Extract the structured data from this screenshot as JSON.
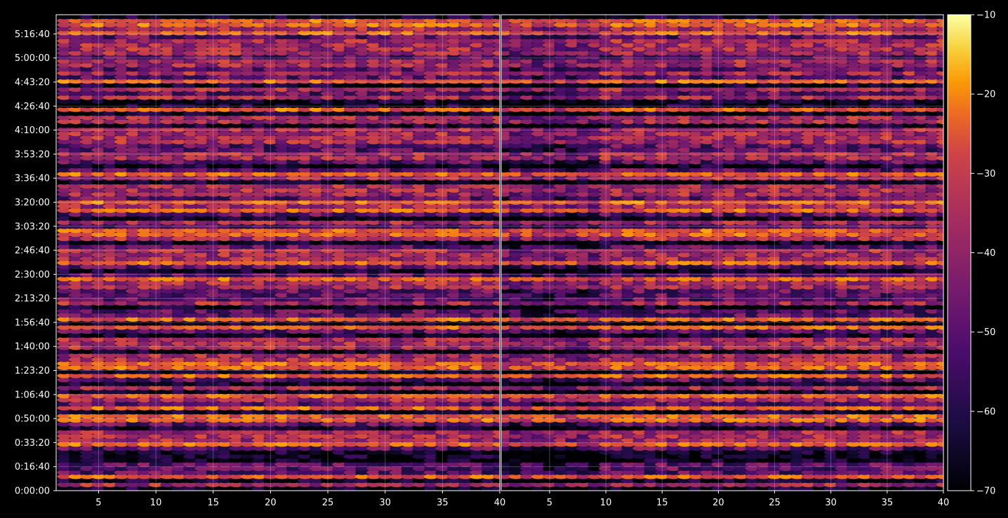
{
  "chart_data": {
    "type": "heatmap",
    "title": "",
    "xlabel": "",
    "ylabel": "",
    "panels": [
      {
        "name": "",
        "xlim": [
          1.3,
          40
        ]
      },
      {
        "name": "",
        "xlim": [
          0.7,
          40
        ]
      }
    ],
    "x_ticks": [
      5,
      10,
      15,
      20,
      25,
      30,
      35,
      40
    ],
    "x_tick_labels": [
      "5",
      "10",
      "15",
      "20",
      "25",
      "30",
      "35",
      "40"
    ],
    "ylim_seconds": [
      0,
      19800
    ],
    "y_ticks_seconds": [
      0,
      1000,
      2000,
      3000,
      4000,
      5000,
      6000,
      7000,
      8000,
      9000,
      10000,
      11000,
      12000,
      13000,
      14000,
      15000,
      16000,
      17000,
      18000,
      19000
    ],
    "y_tick_labels": [
      "0:00:00",
      "0:16:40",
      "0:33:20",
      "0:50:00",
      "1:06:40",
      "1:23:20",
      "1:40:00",
      "1:56:40",
      "2:13:20",
      "2:30:00",
      "2:46:40",
      "3:03:20",
      "3:20:00",
      "3:36:40",
      "3:53:20",
      "4:10:00",
      "4:26:40",
      "4:43:20",
      "5:00:00",
      "5:16:40"
    ],
    "colorbar": {
      "colormap": "inferno",
      "range": [
        -70,
        -10
      ],
      "ticks": [
        -70,
        -60,
        -50,
        -40,
        -30,
        -20,
        -10
      ],
      "tick_labels": [
        "−70",
        "−60",
        "−50",
        "−40",
        "−30",
        "−20",
        "−10"
      ]
    },
    "grid": true,
    "colors": {
      "background": "#000000",
      "axis": "#ffffff",
      "grid": "#ffffff"
    }
  }
}
